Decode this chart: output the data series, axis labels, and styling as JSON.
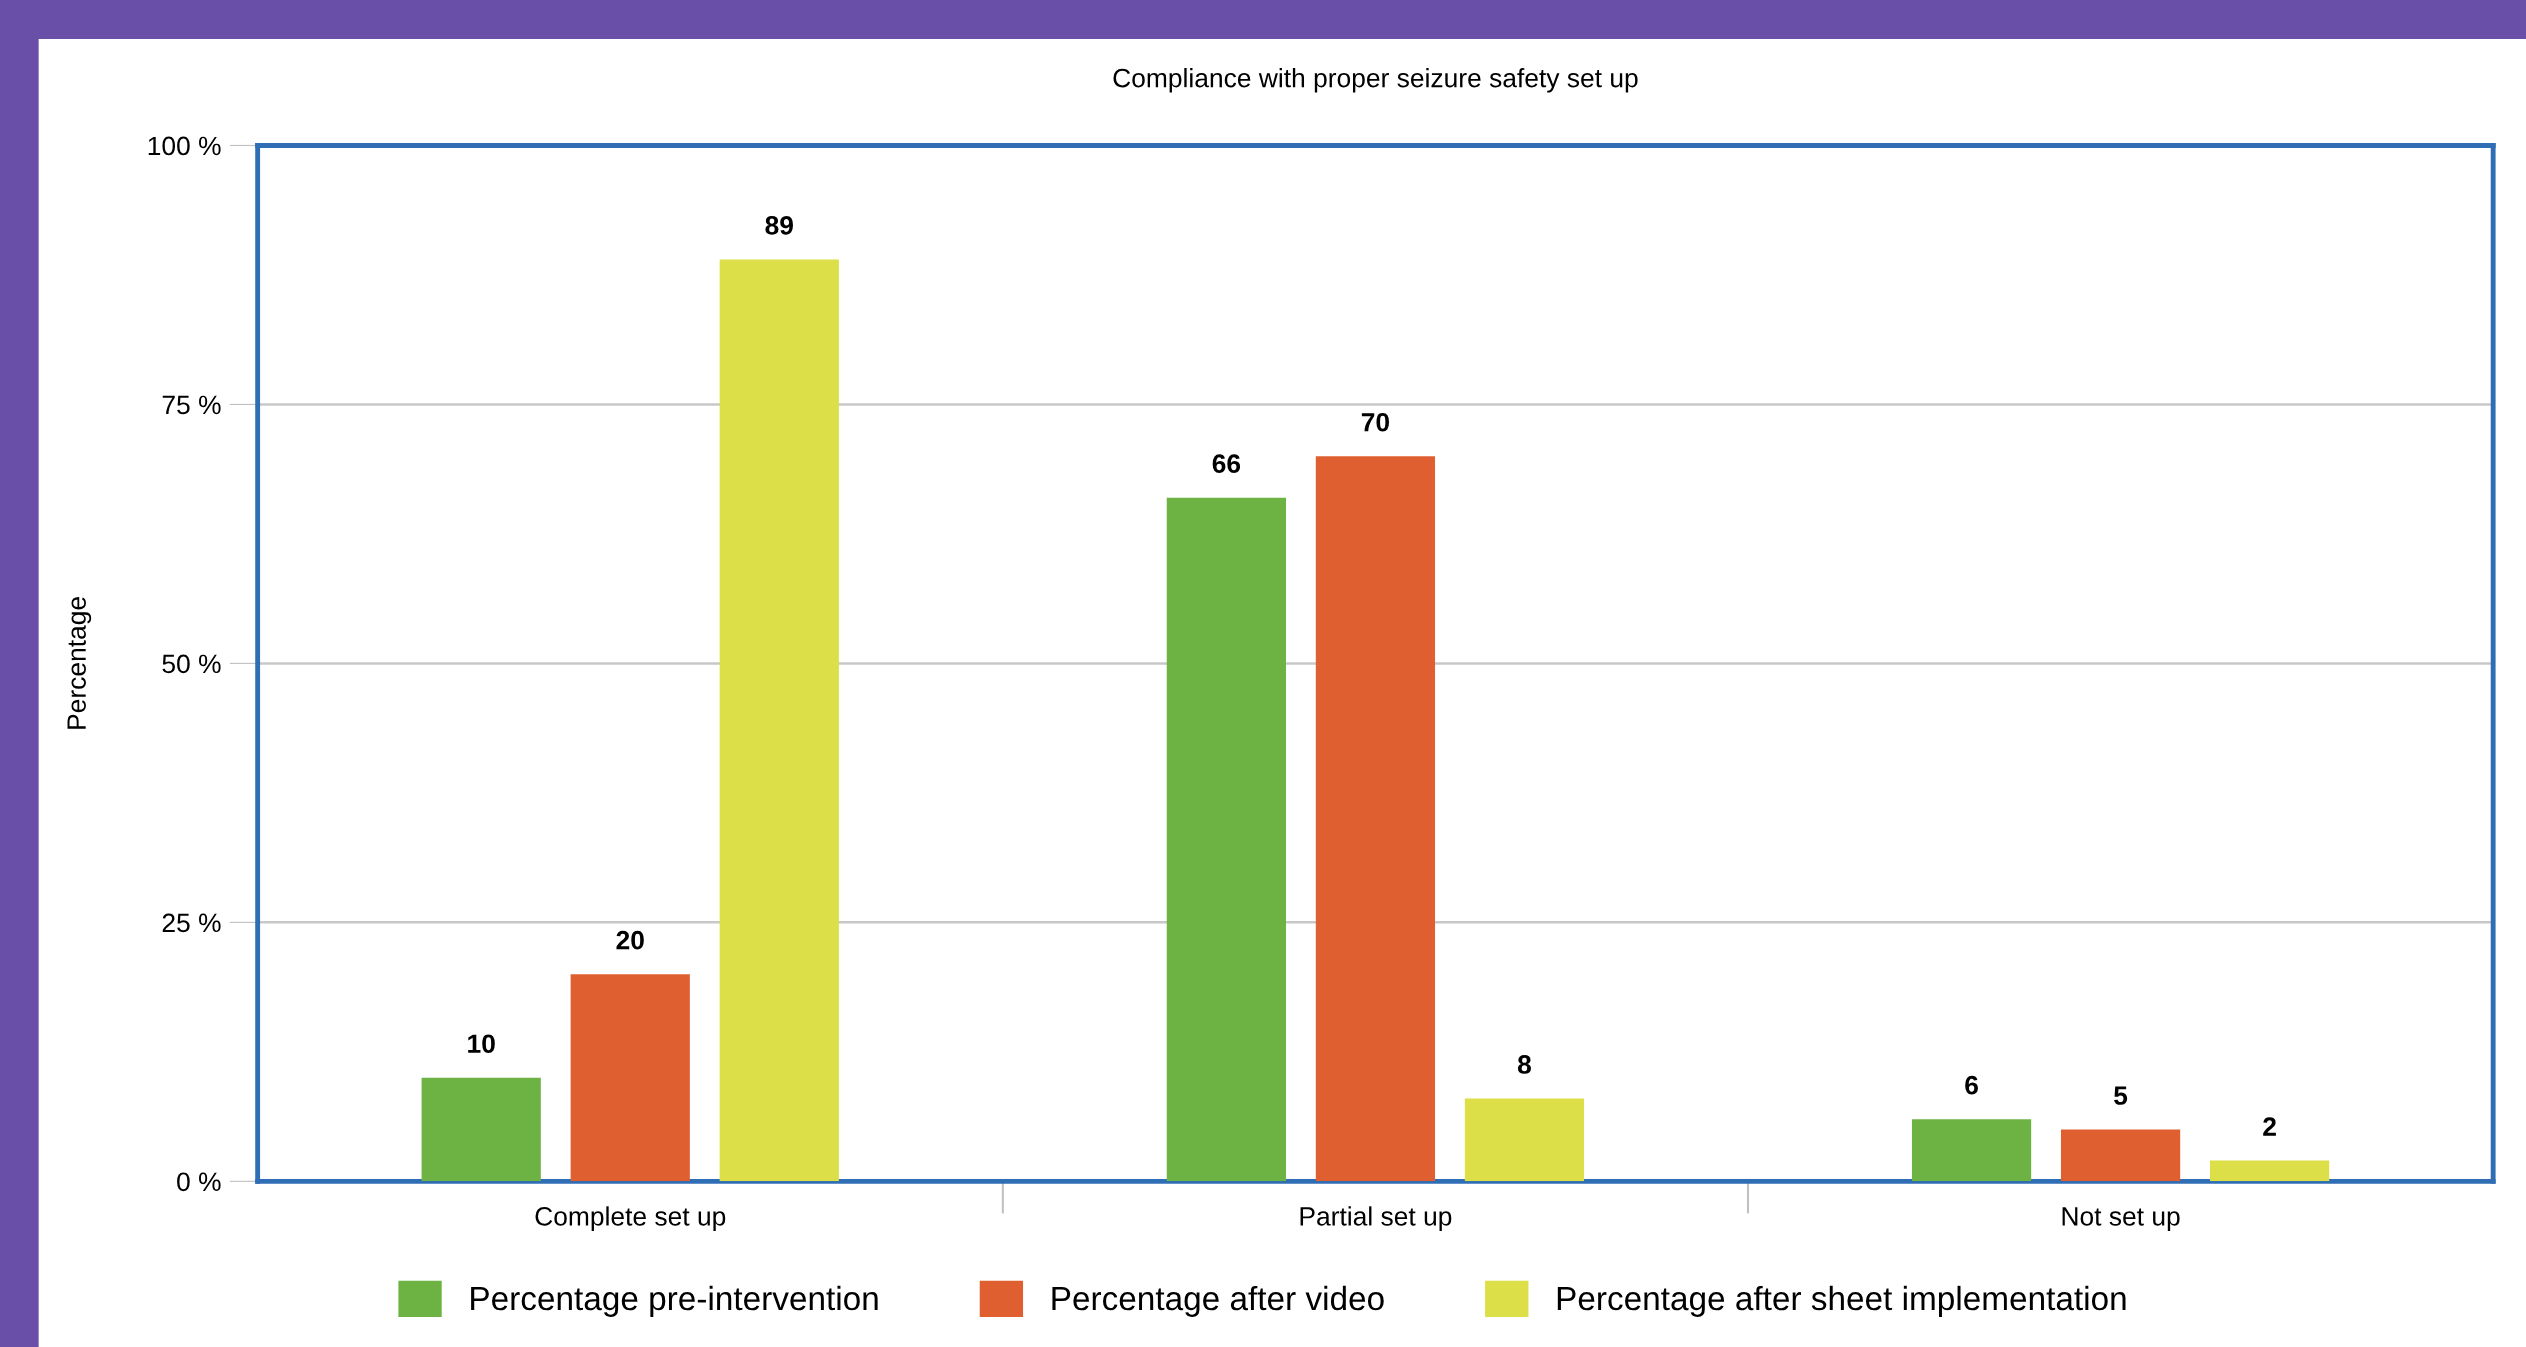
{
  "chart_data": {
    "type": "bar",
    "title": "Compliance with proper seizure safety set up",
    "ylabel": "Percentage",
    "categories": [
      "Complete set up",
      "Partial set up",
      "Not set up"
    ],
    "series": [
      {
        "name": "Percentage pre-intervention",
        "color": "#6db344",
        "values": [
          10,
          66,
          6
        ]
      },
      {
        "name": "Percentage after video",
        "color": "#df5f31",
        "values": [
          20,
          70,
          5
        ]
      },
      {
        "name": "Percentage after sheet implementation",
        "color": "#dcdf48",
        "values": [
          89,
          8,
          2
        ]
      }
    ],
    "ylim": [
      0,
      100
    ],
    "yticks": [
      {
        "value": 0,
        "label": "0 %"
      },
      {
        "value": 25,
        "label": "25 %"
      },
      {
        "value": 50,
        "label": "50 %"
      },
      {
        "value": 75,
        "label": "75 %"
      },
      {
        "value": 100,
        "label": "100 %"
      }
    ],
    "grid": "y",
    "legend": "bottom",
    "data_labels": true
  }
}
